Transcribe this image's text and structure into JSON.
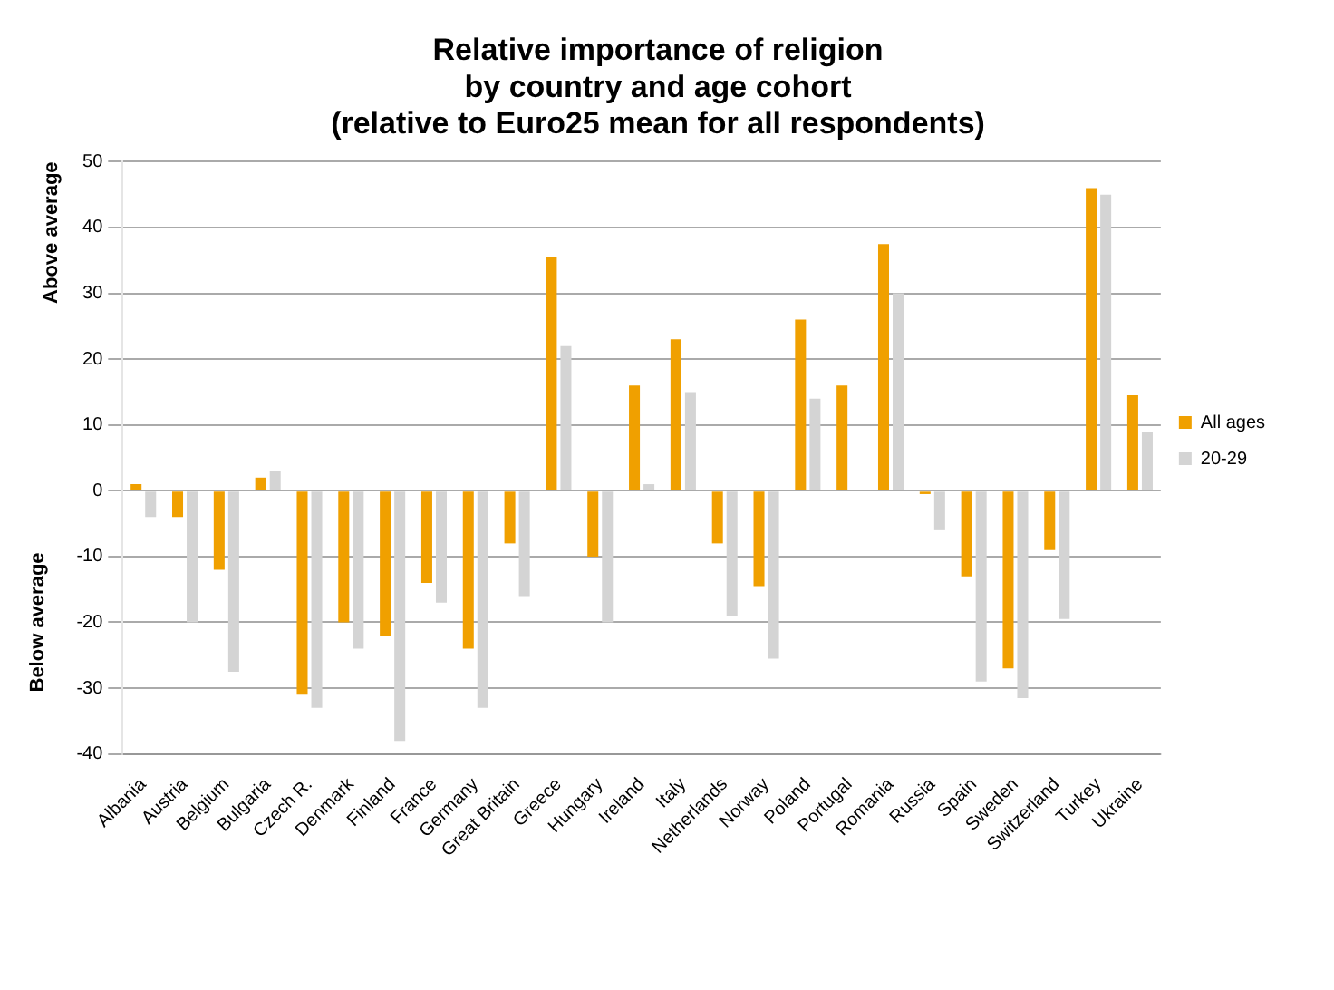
{
  "chart_data": {
    "type": "bar",
    "title": "Relative importance of religion\nby country and age cohort\n(relative to Euro25 mean for all respondents)",
    "ylabel": "Above average",
    "annotations": [
      "Below average"
    ],
    "categories": [
      "Albania",
      "Austria",
      "Belgium",
      "Bulgaria",
      "Czech R.",
      "Denmark",
      "Finland",
      "France",
      "Germany",
      "Great Britain",
      "Greece",
      "Hungary",
      "Ireland",
      "Italy",
      "Netherlands",
      "Norway",
      "Poland",
      "Portugal",
      "Romania",
      "Russia",
      "Spain",
      "Sweden",
      "Switzerland",
      "Turkey",
      "Ukraine"
    ],
    "series": [
      {
        "name": "All ages",
        "color": "#f0a000",
        "values": [
          1,
          -4,
          -12,
          2,
          -31,
          -20,
          -22,
          -14,
          -24,
          -8,
          35.5,
          -10,
          16,
          23,
          -8,
          -14.5,
          26,
          16,
          37.5,
          -0.5,
          -13,
          -27,
          -9,
          46,
          14.5
        ]
      },
      {
        "name": "20-29",
        "color": "#d4d4d4",
        "values": [
          -4,
          -20,
          -27.5,
          3,
          -33,
          -24,
          -38,
          -17,
          -33,
          -16,
          22,
          -20,
          1,
          15,
          -19,
          -25.5,
          14,
          null,
          30,
          -6,
          -29,
          -31.5,
          -19.5,
          45,
          9
        ]
      }
    ],
    "ylim": [
      -40,
      50
    ],
    "yticks": [
      -40,
      -30,
      -20,
      -10,
      0,
      10,
      20,
      30,
      40,
      50
    ],
    "grid": "y",
    "legend": "right"
  }
}
